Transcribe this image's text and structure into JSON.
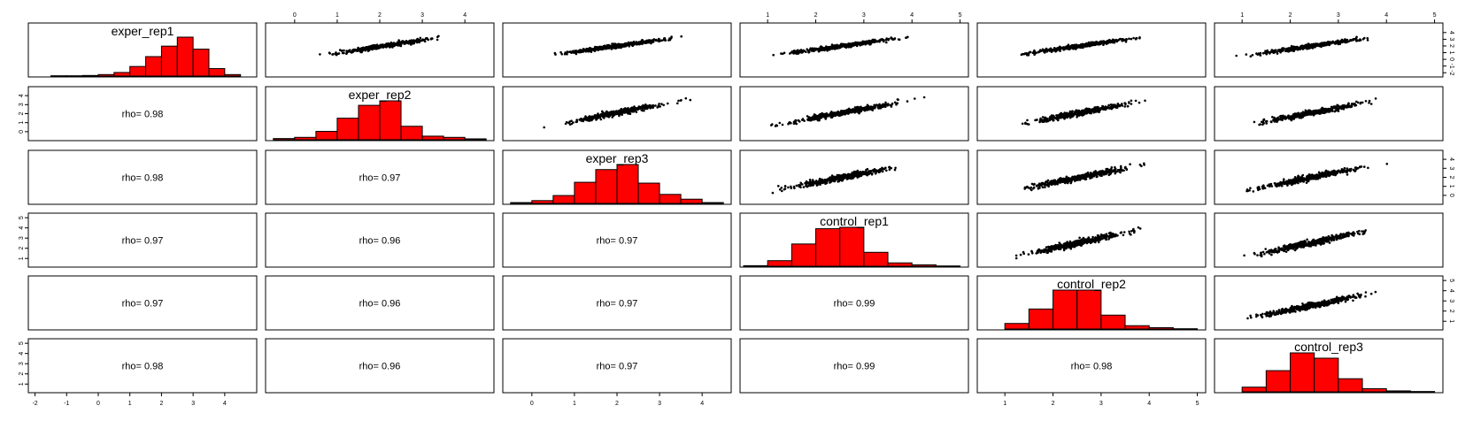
{
  "chart_data": {
    "type": "pairs",
    "variables": [
      "exper_rep1",
      "exper_rep2",
      "exper_rep3",
      "control_rep1",
      "control_rep2",
      "control_rep3"
    ],
    "correlation_label": "rho=",
    "correlations": [
      {
        "row": 1,
        "col": 0,
        "rho": "0.98"
      },
      {
        "row": 2,
        "col": 0,
        "rho": "0.98"
      },
      {
        "row": 2,
        "col": 1,
        "rho": "0.97"
      },
      {
        "row": 3,
        "col": 0,
        "rho": "0.97"
      },
      {
        "row": 3,
        "col": 1,
        "rho": "0.96"
      },
      {
        "row": 3,
        "col": 2,
        "rho": "0.97"
      },
      {
        "row": 4,
        "col": 0,
        "rho": "0.97"
      },
      {
        "row": 4,
        "col": 1,
        "rho": "0.96"
      },
      {
        "row": 4,
        "col": 2,
        "rho": "0.97"
      },
      {
        "row": 4,
        "col": 3,
        "rho": "0.99"
      },
      {
        "row": 5,
        "col": 0,
        "rho": "0.98"
      },
      {
        "row": 5,
        "col": 1,
        "rho": "0.96"
      },
      {
        "row": 5,
        "col": 2,
        "rho": "0.97"
      },
      {
        "row": 5,
        "col": 3,
        "rho": "0.99"
      },
      {
        "row": 5,
        "col": 4,
        "rho": "0.98"
      }
    ],
    "ranges": [
      [
        -2.1,
        4.9
      ],
      [
        -0.6,
        4.6
      ],
      [
        -0.6,
        4.6
      ],
      [
        0.5,
        5.1
      ],
      [
        0.5,
        5.1
      ],
      [
        0.5,
        5.1
      ]
    ],
    "ticks": [
      [
        "-2",
        "-1",
        "0",
        "1",
        "2",
        "3",
        "4"
      ],
      [
        "0",
        "1",
        "2",
        "3",
        "4"
      ],
      [
        "0",
        "1",
        "2",
        "3",
        "4"
      ],
      [
        "1",
        "2",
        "3",
        "4",
        "5"
      ],
      [
        "1",
        "2",
        "3",
        "4",
        "5"
      ],
      [
        "1",
        "2",
        "3",
        "4",
        "5"
      ]
    ],
    "histograms": [
      {
        "breaks": [
          -1.5,
          -1,
          -0.5,
          0,
          0.5,
          1,
          1.5,
          2,
          2.5,
          3,
          3.5,
          4,
          4.5
        ],
        "counts": [
          1,
          1,
          2,
          5,
          12,
          32,
          65,
          100,
          130,
          90,
          25,
          5
        ]
      },
      {
        "breaks": [
          -0.5,
          0,
          0.5,
          1,
          1.5,
          2,
          2.5,
          3,
          3.5,
          4,
          4.5
        ],
        "counts": [
          4,
          8,
          28,
          72,
          115,
          130,
          45,
          12,
          8,
          3
        ]
      },
      {
        "breaks": [
          -0.5,
          0,
          0.5,
          1,
          1.5,
          2,
          2.5,
          3,
          3.5,
          4,
          4.5
        ],
        "counts": [
          3,
          10,
          28,
          75,
          120,
          138,
          72,
          32,
          15,
          3
        ]
      },
      {
        "breaks": [
          0.5,
          1,
          1.5,
          2,
          2.5,
          3,
          3.5,
          4,
          4.5,
          5
        ],
        "counts": [
          2,
          20,
          80,
          135,
          140,
          50,
          12,
          5,
          1
        ]
      },
      {
        "breaks": [
          1,
          1.5,
          2,
          2.5,
          3,
          3.5,
          4,
          4.5,
          5
        ],
        "counts": [
          20,
          72,
          140,
          140,
          50,
          12,
          5,
          1
        ]
      },
      {
        "breaks": [
          1,
          1.5,
          2,
          2.5,
          3,
          3.5,
          4,
          4.5,
          5
        ],
        "counts": [
          15,
          68,
          125,
          108,
          42,
          10,
          3,
          1
        ]
      }
    ],
    "scatter_style": {
      "color": "#000000"
    },
    "histogram_style": {
      "fill": "#ff0000",
      "stroke": "#000000"
    }
  }
}
